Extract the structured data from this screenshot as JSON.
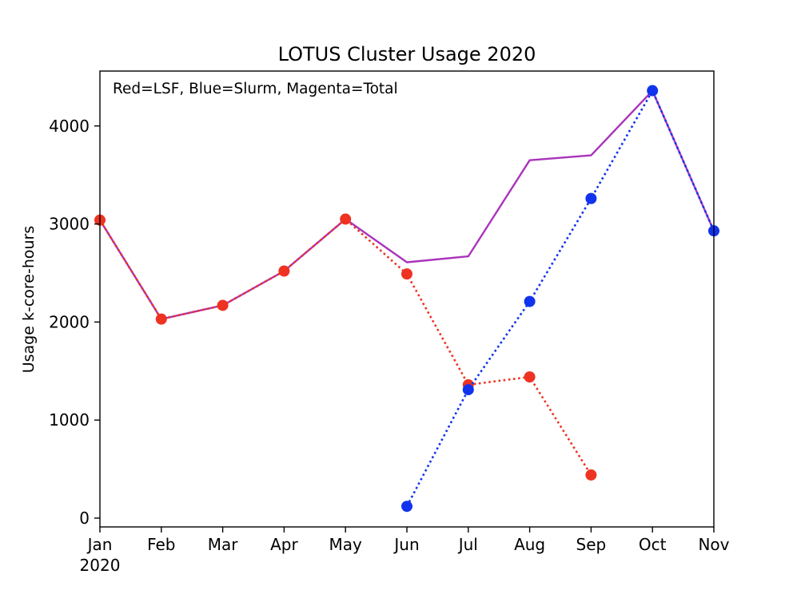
{
  "chart_data": {
    "type": "line",
    "title": "LOTUS Cluster Usage 2020",
    "xlabel": "",
    "ylabel": "Usage k-core-hours",
    "annotation": "Red=LSF, Blue=Slurm, Magenta=Total",
    "categories": [
      "Jan",
      "Feb",
      "Mar",
      "Apr",
      "May",
      "Jun",
      "Jul",
      "Aug",
      "Sep",
      "Oct",
      "Nov"
    ],
    "year_label": "2020",
    "ylim": [
      -90,
      4560
    ],
    "yticks": [
      0,
      1000,
      2000,
      3000,
      4000
    ],
    "grid": false,
    "series": [
      {
        "key": "lsf",
        "name": "LSF",
        "color": "#ee3322",
        "style": "dotted",
        "markers": true,
        "values": [
          3040,
          2030,
          2170,
          2520,
          3050,
          2490,
          1360,
          1440,
          440,
          null,
          null
        ]
      },
      {
        "key": "slurm",
        "name": "Slurm",
        "color": "#1133ee",
        "style": "dotted",
        "markers": true,
        "values": [
          null,
          null,
          null,
          null,
          null,
          120,
          1310,
          2210,
          3260,
          4360,
          2930
        ]
      },
      {
        "key": "total",
        "name": "Total",
        "color": "#aa33bb",
        "style": "solid",
        "markers": false,
        "values": [
          3040,
          2030,
          2170,
          2520,
          3050,
          2610,
          2670,
          3650,
          3700,
          4360,
          2930
        ]
      }
    ]
  }
}
